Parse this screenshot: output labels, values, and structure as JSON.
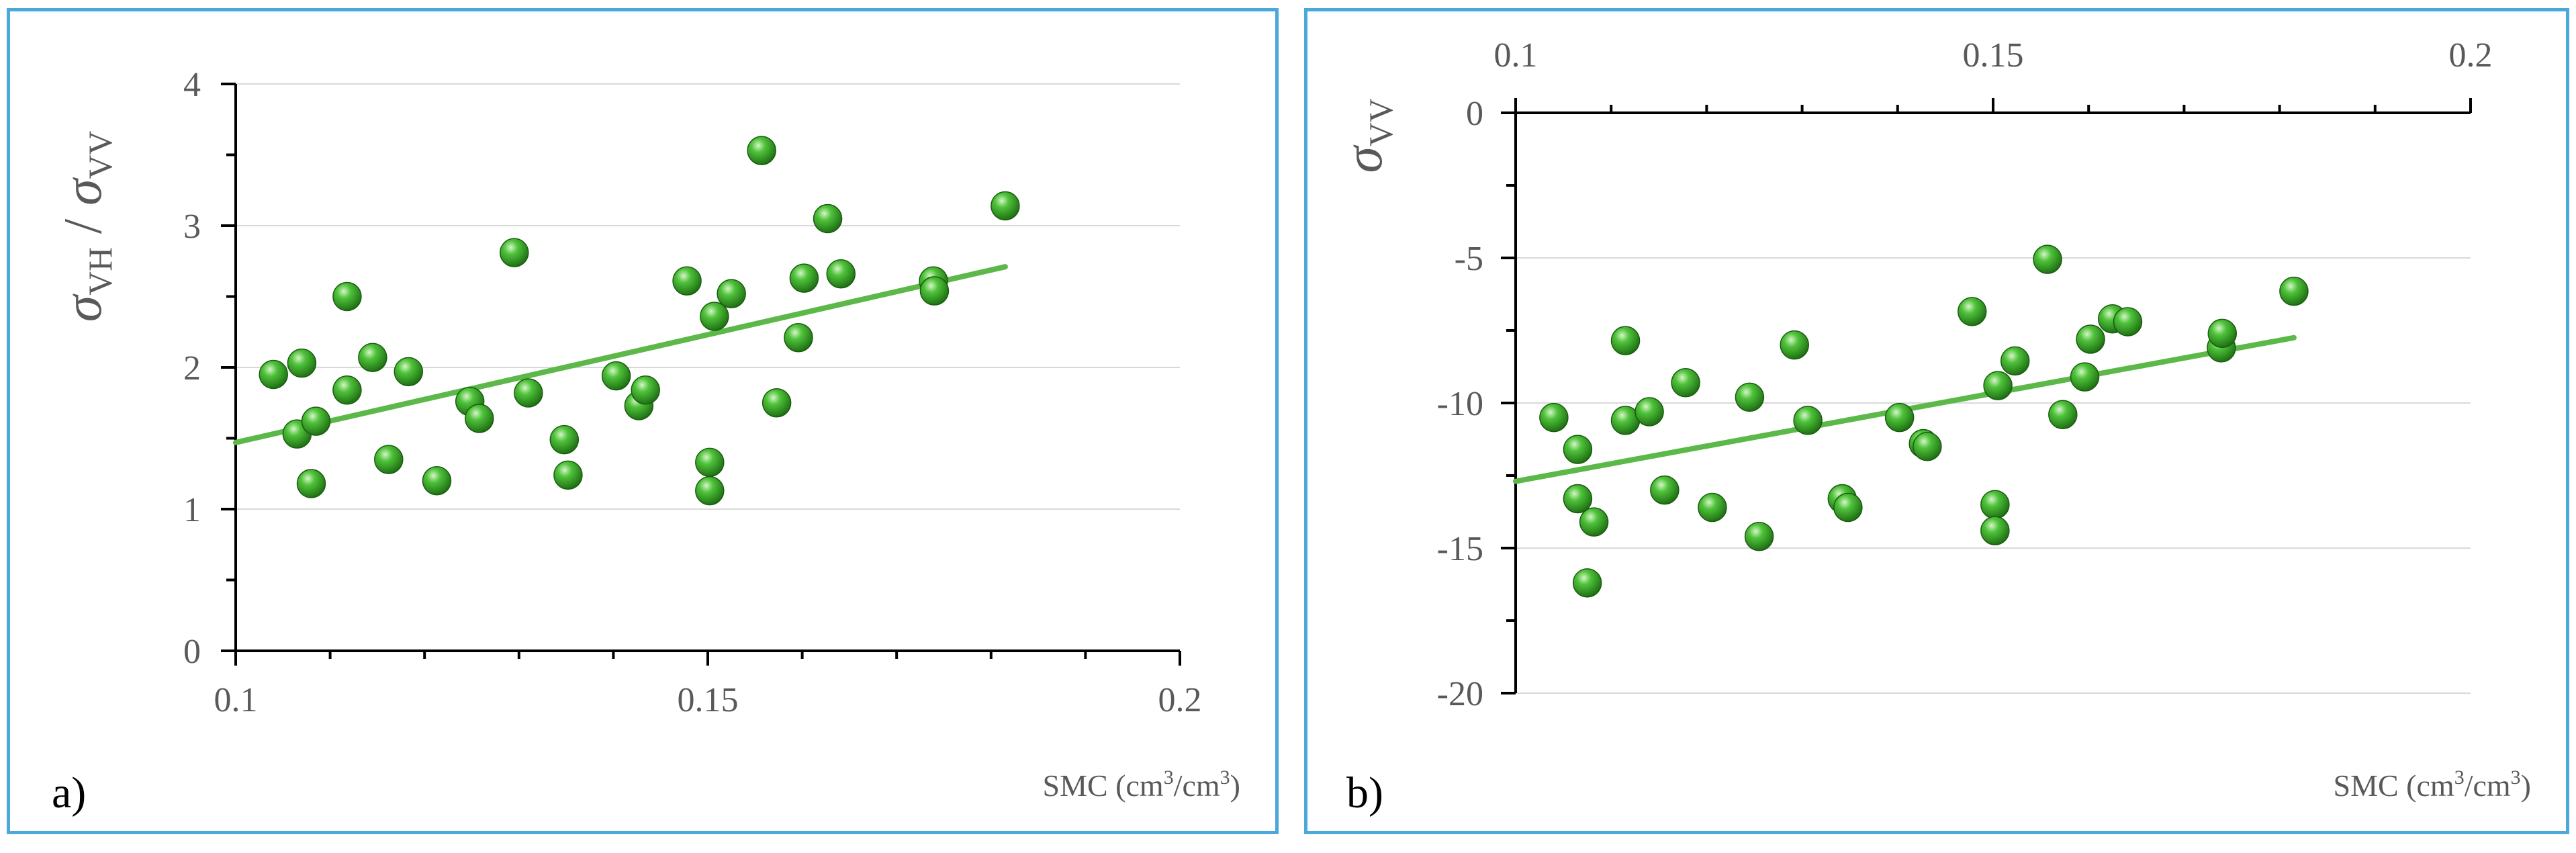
{
  "colors": {
    "frame": "#4aa8da",
    "marker": "#2e9e1e",
    "trend": "#5cb848",
    "grid": "#d9d9d9",
    "axis": "#000000",
    "text": "#595959"
  },
  "chart_data": [
    {
      "type": "scatter",
      "panel_label": "a)",
      "ylabel": {
        "sym": "σ",
        "sub1": "VH",
        "sep": " / ",
        "sym2": "σ",
        "sub2": "VV"
      },
      "xlabel": {
        "pre": "SMC (cm",
        "sup1": "3",
        "mid": "/cm",
        "sup2": "3",
        "post": ")"
      },
      "xlim": [
        0.1,
        0.2
      ],
      "ylim": [
        0,
        4
      ],
      "x_axis_position": "bottom",
      "x_ticks": [
        0.1,
        0.15,
        0.2
      ],
      "x_tick_labels": [
        "0.1",
        "0.15",
        "0.2"
      ],
      "y_ticks": [
        0,
        1,
        2,
        3,
        4
      ],
      "y_tick_labels": [
        "0",
        "1",
        "2",
        "3",
        "4"
      ],
      "gridlines": "horizontal",
      "trendline": {
        "x": [
          0.1,
          0.1815
        ],
        "y": [
          1.47,
          2.71
        ]
      },
      "points": [
        [
          0.104,
          1.95
        ],
        [
          0.1065,
          1.53
        ],
        [
          0.107,
          2.03
        ],
        [
          0.108,
          1.18
        ],
        [
          0.1085,
          1.62
        ],
        [
          0.1118,
          2.5
        ],
        [
          0.1118,
          1.84
        ],
        [
          0.1145,
          2.07
        ],
        [
          0.1162,
          1.35
        ],
        [
          0.1183,
          1.97
        ],
        [
          0.1213,
          1.2
        ],
        [
          0.1248,
          1.76
        ],
        [
          0.1258,
          1.64
        ],
        [
          0.1295,
          2.81
        ],
        [
          0.131,
          1.82
        ],
        [
          0.1348,
          1.49
        ],
        [
          0.1352,
          1.24
        ],
        [
          0.1403,
          1.94
        ],
        [
          0.1427,
          1.73
        ],
        [
          0.1434,
          1.84
        ],
        [
          0.1478,
          2.61
        ],
        [
          0.1502,
          1.33
        ],
        [
          0.1502,
          1.13
        ],
        [
          0.1507,
          2.36
        ],
        [
          0.1525,
          2.52
        ],
        [
          0.1557,
          3.53
        ],
        [
          0.1573,
          1.75
        ],
        [
          0.1596,
          2.21
        ],
        [
          0.1602,
          2.63
        ],
        [
          0.1627,
          3.05
        ],
        [
          0.1641,
          2.66
        ],
        [
          0.1739,
          2.61
        ],
        [
          0.174,
          2.54
        ],
        [
          0.1815,
          3.14
        ]
      ]
    },
    {
      "type": "scatter",
      "panel_label": "b)",
      "ylabel": {
        "sym": "σ",
        "sub1": "VV"
      },
      "xlabel": {
        "pre": "SMC (cm",
        "sup1": "3",
        "mid": "/cm",
        "sup2": "3",
        "post": ")"
      },
      "xlim": [
        0.1,
        0.2
      ],
      "ylim": [
        -20,
        0
      ],
      "x_axis_position": "top",
      "x_ticks": [
        0.1,
        0.15,
        0.2
      ],
      "x_tick_labels": [
        "0.1",
        "0.15",
        "0.2"
      ],
      "y_ticks": [
        -20,
        -15,
        -10,
        -5,
        0
      ],
      "y_tick_labels": [
        "-20",
        "-15",
        "-10",
        "-5",
        "0"
      ],
      "gridlines": "horizontal",
      "trendline": {
        "x": [
          0.1,
          0.1815
        ],
        "y": [
          -12.7,
          -7.75
        ]
      },
      "points": [
        [
          0.104,
          -10.5
        ],
        [
          0.1065,
          -11.6
        ],
        [
          0.1065,
          -13.3
        ],
        [
          0.1075,
          -16.2
        ],
        [
          0.1082,
          -14.1
        ],
        [
          0.1115,
          -7.85
        ],
        [
          0.1115,
          -10.6
        ],
        [
          0.114,
          -10.3
        ],
        [
          0.1156,
          -13.0
        ],
        [
          0.1178,
          -9.3
        ],
        [
          0.1206,
          -13.6
        ],
        [
          0.1245,
          -9.8
        ],
        [
          0.1255,
          -14.6
        ],
        [
          0.1292,
          -8.0
        ],
        [
          0.1306,
          -10.6
        ],
        [
          0.1342,
          -13.3
        ],
        [
          0.1348,
          -13.6
        ],
        [
          0.1402,
          -10.5
        ],
        [
          0.1427,
          -11.4
        ],
        [
          0.1431,
          -11.5
        ],
        [
          0.1478,
          -6.85
        ],
        [
          0.1502,
          -13.5
        ],
        [
          0.1502,
          -14.4
        ],
        [
          0.1505,
          -9.4
        ],
        [
          0.1523,
          -8.55
        ],
        [
          0.1557,
          -5.05
        ],
        [
          0.1573,
          -10.4
        ],
        [
          0.1596,
          -9.1
        ],
        [
          0.1602,
          -7.8
        ],
        [
          0.1625,
          -7.1
        ],
        [
          0.1641,
          -7.2
        ],
        [
          0.1739,
          -8.1
        ],
        [
          0.174,
          -7.6
        ],
        [
          0.1815,
          -6.15
        ]
      ]
    }
  ]
}
